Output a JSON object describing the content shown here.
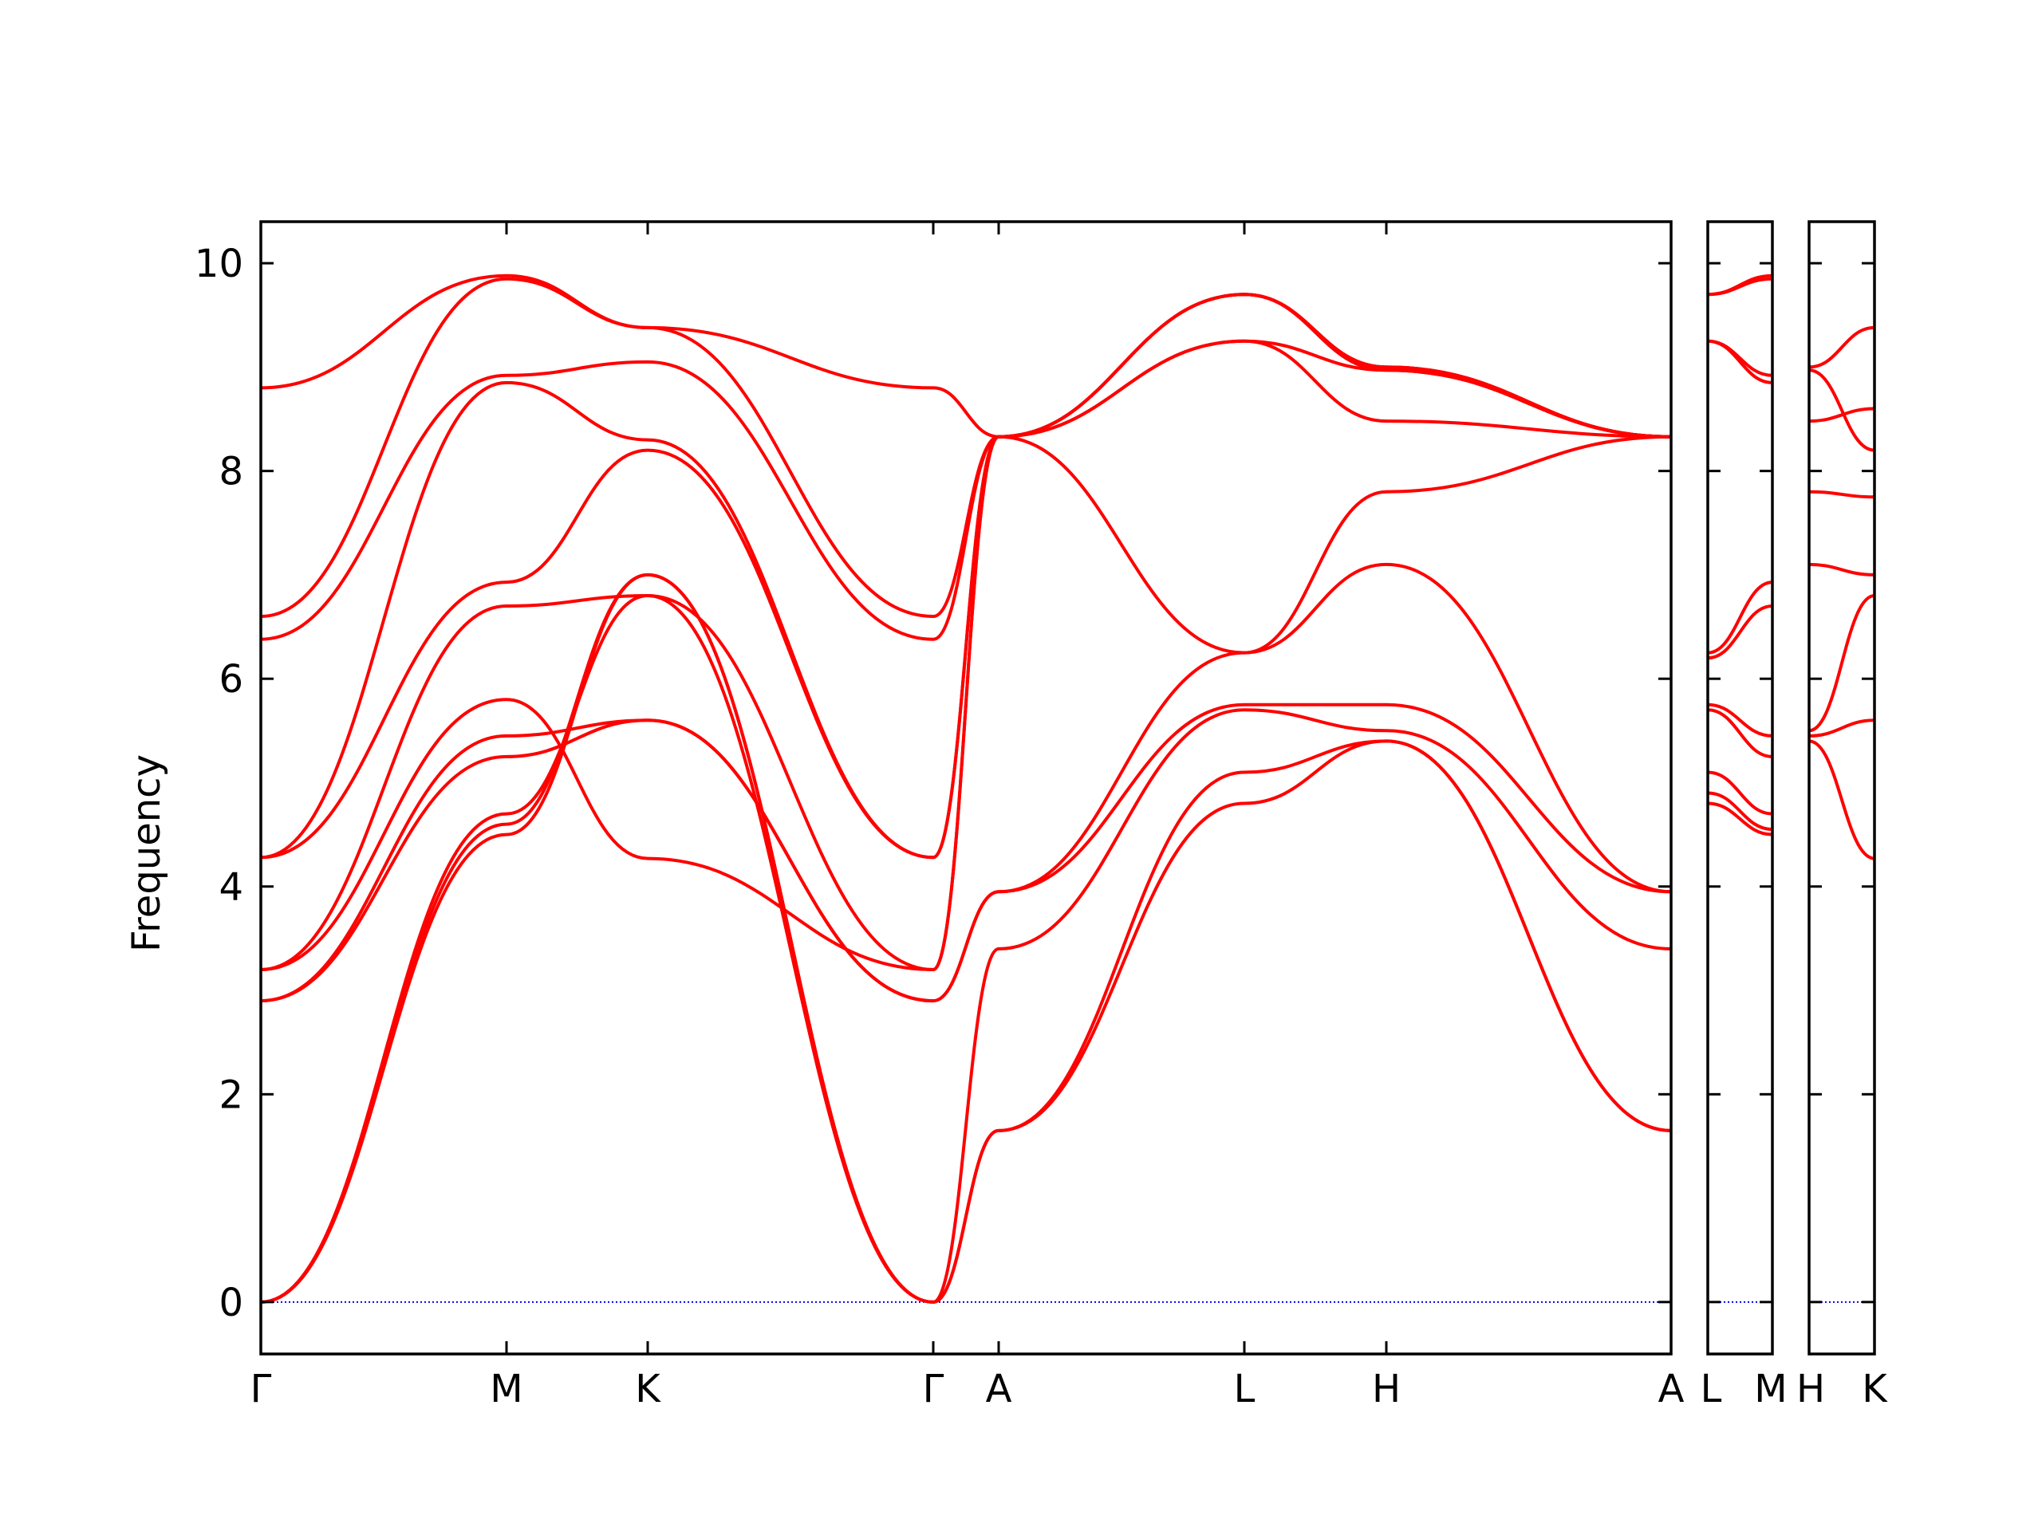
{
  "chart_data": {
    "type": "line",
    "title": "",
    "xlabel": "",
    "ylabel": "Frequency",
    "ylim": [
      -0.5,
      10.4
    ],
    "y_ticks": [
      "0",
      "2",
      "4",
      "6",
      "8",
      "10"
    ],
    "grid": false,
    "legend": "none",
    "line_color": "#ff0000",
    "zero_line_color": "#0000ff",
    "panels": [
      {
        "path": [
          "Γ",
          "M",
          "K",
          "Γ",
          "A",
          "L",
          "H",
          "A"
        ],
        "x_ticks": [
          "Γ",
          "M",
          "K",
          "Γ",
          "A",
          "L",
          "H",
          "A"
        ],
        "description_points": "key frequencies per band at each high-symmetry point",
        "band_values": [
          [
            0,
            4.5,
            7.0,
            0,
            1.65,
            4.8,
            5.4,
            1.65
          ],
          [
            0,
            4.6,
            7.0,
            0,
            1.65,
            5.1,
            5.4,
            1.65
          ],
          [
            0,
            4.7,
            6.8,
            0,
            3.4,
            5.7,
            5.5,
            3.4
          ],
          [
            2.9,
            5.25,
            5.6,
            2.9,
            3.95,
            5.75,
            5.75,
            3.95
          ],
          [
            2.9,
            5.45,
            5.6,
            2.9,
            3.95,
            6.25,
            7.1,
            3.95
          ],
          [
            3.2,
            5.8,
            4.27,
            3.2,
            8.33,
            6.25,
            7.8,
            8.33
          ],
          [
            3.2,
            6.7,
            6.8,
            3.2,
            8.33,
            9.25,
            8.48,
            8.33
          ],
          [
            4.28,
            6.93,
            8.2,
            4.28,
            8.33,
            9.25,
            8.97,
            8.33
          ],
          [
            4.28,
            8.85,
            8.3,
            4.28,
            8.33,
            9.7,
            8.97,
            8.33
          ],
          [
            6.38,
            8.92,
            9.05,
            6.38,
            8.33,
            9.7,
            9.0,
            8.33
          ],
          [
            6.6,
            9.85,
            9.38,
            6.6,
            8.33,
            9.7,
            9.0,
            8.33
          ],
          [
            8.8,
            9.88,
            9.38,
            8.8,
            8.33,
            9.7,
            9.0,
            8.33
          ]
        ]
      },
      {
        "path": [
          "L",
          "M"
        ],
        "x_ticks": [
          "L",
          "M"
        ],
        "band_values": [
          [
            4.8,
            4.5
          ],
          [
            4.9,
            4.55
          ],
          [
            5.1,
            4.7
          ],
          [
            5.7,
            5.25
          ],
          [
            5.75,
            5.45
          ],
          [
            6.2,
            6.7
          ],
          [
            6.25,
            6.93
          ],
          [
            9.25,
            8.85
          ],
          [
            9.25,
            8.92
          ],
          [
            9.7,
            9.85
          ],
          [
            9.7,
            9.88
          ]
        ]
      },
      {
        "path": [
          "H",
          "K"
        ],
        "x_ticks": [
          "H",
          "K"
        ],
        "band_values": [
          [
            5.4,
            4.27
          ],
          [
            5.45,
            5.6
          ],
          [
            5.5,
            6.8
          ],
          [
            7.1,
            7.0
          ],
          [
            7.8,
            7.75
          ],
          [
            8.48,
            8.6
          ],
          [
            8.97,
            8.2
          ],
          [
            9.0,
            9.38
          ]
        ]
      }
    ]
  }
}
